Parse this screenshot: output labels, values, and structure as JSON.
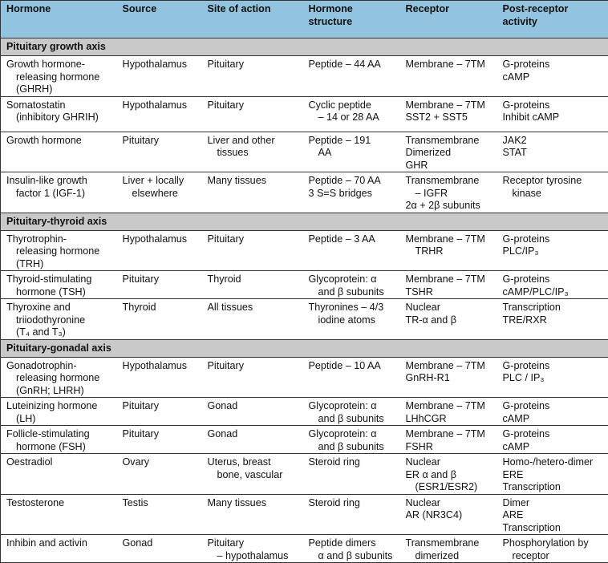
{
  "header": [
    "Hormone",
    "Source",
    "Site of action",
    "Hormone structure",
    "Receptor",
    "Post-receptor activity"
  ],
  "header_lines": [
    [
      "Hormone"
    ],
    [
      "Source"
    ],
    [
      "Site of action"
    ],
    [
      "Hormone",
      "structure"
    ],
    [
      "Receptor"
    ],
    [
      "Post-receptor",
      "activity"
    ]
  ],
  "colors": {
    "header_bg": "#93c4df",
    "section_bg": "#c9c9c9"
  },
  "sections": [
    {
      "title": "Pituitary growth axis",
      "rows": [
        [
          [
            [
              "Growth hormone-",
              "releasing hormone",
              "(GHRH)"
            ]
          ],
          [
            [
              "Hypothalamus"
            ]
          ],
          [
            [
              "Pituitary"
            ]
          ],
          [
            [
              "Peptide – 44 AA"
            ]
          ],
          [
            [
              "Membrane – 7TM"
            ]
          ],
          [
            [
              "G-proteins"
            ],
            [
              "cAMP"
            ]
          ]
        ],
        [
          [
            [
              "Somatostatin",
              "(inhibitory GHRIH)"
            ]
          ],
          [
            [
              "Hypothalamus"
            ]
          ],
          [
            [
              "Pituitary"
            ]
          ],
          [
            [
              "Cyclic peptide",
              "– 14 or 28 AA"
            ]
          ],
          [
            [
              "Membrane – 7TM"
            ],
            [
              "SST2 + SST5"
            ]
          ],
          [
            [
              "G-proteins"
            ],
            [
              "Inhibit cAMP"
            ]
          ]
        ],
        [
          [
            [
              "Growth hormone"
            ]
          ],
          [
            [
              "Pituitary"
            ]
          ],
          [
            [
              "Liver and other",
              "tissues"
            ]
          ],
          [
            [
              "Peptide – 191",
              "AA"
            ]
          ],
          [
            [
              "Transmembrane"
            ],
            [
              "Dimerized"
            ],
            [
              "GHR"
            ]
          ],
          [
            [
              "JAK2"
            ],
            [
              "STAT"
            ]
          ]
        ],
        [
          [
            [
              "Insulin-like growth",
              "factor 1 (IGF-1)"
            ]
          ],
          [
            [
              "Liver + locally",
              "elsewhere"
            ]
          ],
          [
            [
              "Many tissues"
            ]
          ],
          [
            [
              "Peptide – 70 AA"
            ],
            [
              "3 S=S bridges"
            ]
          ],
          [
            [
              "Transmembrane",
              "– IGFR"
            ],
            [
              "2α + 2β subunits"
            ]
          ],
          [
            [
              "Receptor tyrosine",
              "kinase"
            ]
          ]
        ]
      ]
    },
    {
      "title": "Pituitary-thyroid axis",
      "rows": [
        [
          [
            [
              "Thyrotrophin-",
              "releasing hormone",
              "(TRH)"
            ]
          ],
          [
            [
              "Hypothalamus"
            ]
          ],
          [
            [
              "Pituitary"
            ]
          ],
          [
            [
              "Peptide – 3 AA"
            ]
          ],
          [
            [
              "Membrane – 7TM",
              "TRHR"
            ]
          ],
          [
            [
              "G-proteins"
            ],
            [
              "PLC/IP₃"
            ]
          ]
        ],
        [
          [
            [
              "Thyroid-stimulating",
              "hormone (TSH)"
            ]
          ],
          [
            [
              "Pituitary"
            ]
          ],
          [
            [
              "Thyroid"
            ]
          ],
          [
            [
              "Glycoprotein: α",
              "and β subunits"
            ]
          ],
          [
            [
              "Membrane – 7TM"
            ],
            [
              "TSHR"
            ]
          ],
          [
            [
              "G-proteins"
            ],
            [
              "cAMP/PLC/IP₃"
            ]
          ]
        ],
        [
          [
            [
              "Thyroxine and",
              "triiodothyronine",
              "(T₄ and T₃)"
            ]
          ],
          [
            [
              "Thyroid"
            ]
          ],
          [
            [
              "All tissues"
            ]
          ],
          [
            [
              "Thyronines – 4/3",
              "iodine atoms"
            ]
          ],
          [
            [
              "Nuclear"
            ],
            [
              "TR-α and β"
            ]
          ],
          [
            [
              "Transcription"
            ],
            [
              "TRE/RXR"
            ]
          ]
        ]
      ]
    },
    {
      "title": "Pituitary-gonadal axis",
      "rows": [
        [
          [
            [
              "Gonadotrophin-",
              "releasing hormone",
              "(GnRH; LHRH)"
            ]
          ],
          [
            [
              "Hypothalamus"
            ]
          ],
          [
            [
              "Pituitary"
            ]
          ],
          [
            [
              "Peptide – 10 AA"
            ]
          ],
          [
            [
              "Membrane – 7TM"
            ],
            [
              "GnRH-R1"
            ]
          ],
          [
            [
              "G-proteins"
            ],
            [
              "PLC / IP₃"
            ]
          ]
        ],
        [
          [
            [
              "Luteinizing hormone",
              "(LH)"
            ]
          ],
          [
            [
              "Pituitary"
            ]
          ],
          [
            [
              "Gonad"
            ]
          ],
          [
            [
              "Glycoprotein: α",
              "and β subunits"
            ]
          ],
          [
            [
              "Membrane – 7TM"
            ],
            [
              "LHhCGR"
            ]
          ],
          [
            [
              "G-proteins"
            ],
            [
              "cAMP"
            ]
          ]
        ],
        [
          [
            [
              "Follicle-stimulating",
              "hormone (FSH)"
            ]
          ],
          [
            [
              "Pituitary"
            ]
          ],
          [
            [
              "Gonad"
            ]
          ],
          [
            [
              "Glycoprotein: α",
              "and β subunits"
            ]
          ],
          [
            [
              "Membrane – 7TM"
            ],
            [
              "FSHR"
            ]
          ],
          [
            [
              "G-proteins"
            ],
            [
              "cAMP"
            ]
          ]
        ],
        [
          [
            [
              "Oestradiol"
            ]
          ],
          [
            [
              "Ovary"
            ]
          ],
          [
            [
              "Uterus, breast",
              "bone, vascular"
            ]
          ],
          [
            [
              "Steroid ring"
            ]
          ],
          [
            [
              "Nuclear"
            ],
            [
              "ER α and β",
              "(ESR1/ESR2)"
            ]
          ],
          [
            [
              "Homo-/hetero-dimer"
            ],
            [
              "ERE"
            ],
            [
              "Transcription"
            ]
          ]
        ],
        [
          [
            [
              "Testosterone"
            ]
          ],
          [
            [
              "Testis"
            ]
          ],
          [
            [
              "Many tissues"
            ]
          ],
          [
            [
              "Steroid ring"
            ]
          ],
          [
            [
              "Nuclear"
            ],
            [
              "AR (NR3C4)"
            ]
          ],
          [
            [
              "Dimer"
            ],
            [
              "ARE"
            ],
            [
              "Transcription"
            ]
          ]
        ],
        [
          [
            [
              "Inhibin and activin"
            ]
          ],
          [
            [
              "Gonad"
            ]
          ],
          [
            [
              "Pituitary",
              "– hypothalamus"
            ]
          ],
          [
            [
              "Peptide dimers",
              "α and β subunits"
            ]
          ],
          [
            [
              "Transmembrane",
              "dimerized"
            ]
          ],
          [
            [
              "Phosphorylation by",
              "receptor"
            ]
          ]
        ]
      ]
    }
  ]
}
